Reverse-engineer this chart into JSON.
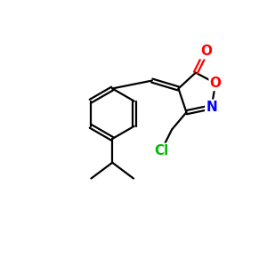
{
  "background": "#ffffff",
  "atom_colors": {
    "O": "#ff0000",
    "N": "#0000ff",
    "Cl": "#00bb00"
  },
  "bond_color": "#000000",
  "bond_width": 1.6,
  "font_size_atom": 11
}
